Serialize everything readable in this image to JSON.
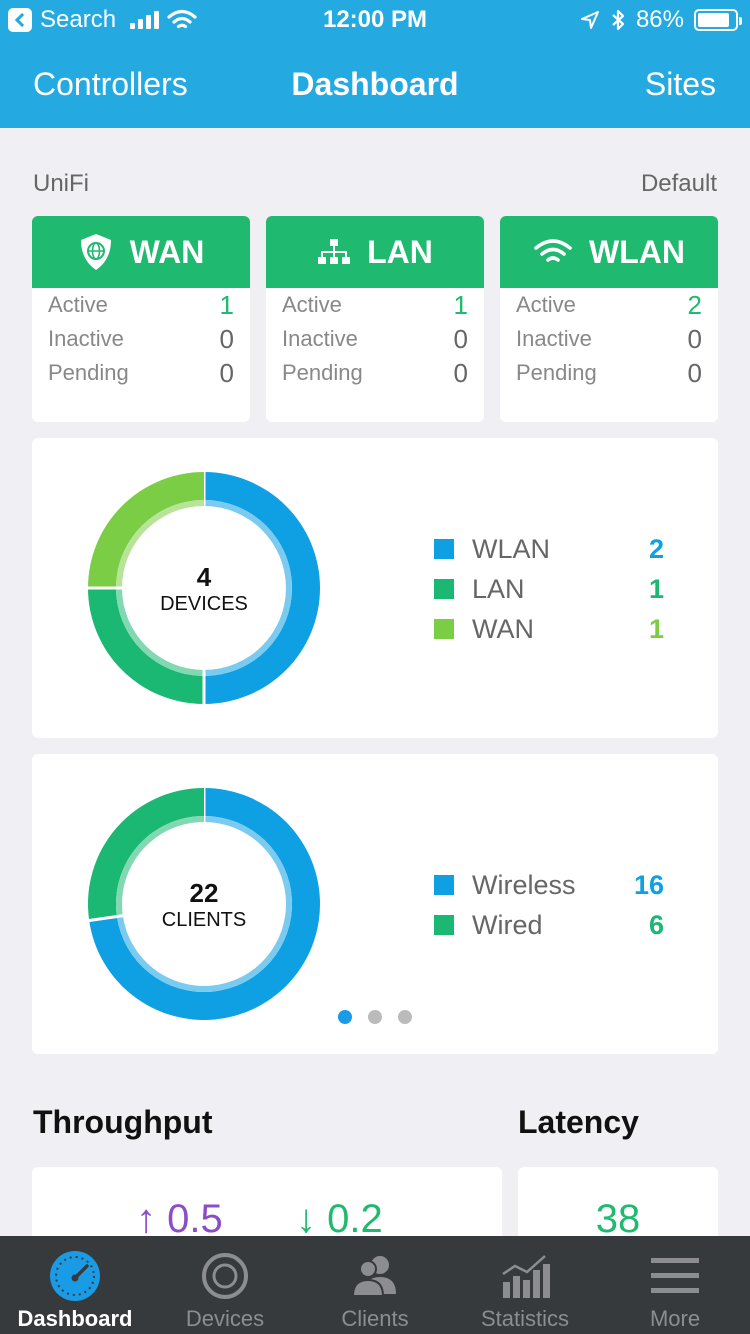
{
  "status_bar": {
    "back_label": "Search",
    "time": "12:00 PM",
    "battery": "86%"
  },
  "nav": {
    "left": "Controllers",
    "title": "Dashboard",
    "right": "Sites"
  },
  "site": {
    "left": "UniFi",
    "right": "Default"
  },
  "summary": [
    {
      "title": "WAN",
      "icon": "shield-globe-icon",
      "active_label": "Active",
      "active": "1",
      "inactive_label": "Inactive",
      "inactive": "0",
      "pending_label": "Pending",
      "pending": "0"
    },
    {
      "title": "LAN",
      "icon": "network-tree-icon",
      "active_label": "Active",
      "active": "1",
      "inactive_label": "Inactive",
      "inactive": "0",
      "pending_label": "Pending",
      "pending": "0"
    },
    {
      "title": "WLAN",
      "icon": "wifi-icon",
      "active_label": "Active",
      "active": "2",
      "inactive_label": "Inactive",
      "inactive": "0",
      "pending_label": "Pending",
      "pending": "0"
    }
  ],
  "devices": {
    "count": "4",
    "label": "DEVICES",
    "legend": [
      {
        "name": "WLAN",
        "value": "2",
        "color": "#0fa0e3"
      },
      {
        "name": "LAN",
        "value": "1",
        "color": "#1ab872"
      },
      {
        "name": "WAN",
        "value": "1",
        "color": "#7ccd46"
      }
    ]
  },
  "clients": {
    "count": "22",
    "label": "CLIENTS",
    "legend": [
      {
        "name": "Wireless",
        "value": "16",
        "color": "#0fa0e3"
      },
      {
        "name": "Wired",
        "value": "6",
        "color": "#1ab872"
      }
    ]
  },
  "throughput": {
    "title": "Throughput",
    "up": "↑ 0.5",
    "down": "↓ 0.2"
  },
  "latency": {
    "title": "Latency",
    "value": "38"
  },
  "tabs": [
    {
      "label": "Dashboard",
      "icon": "speedometer-icon",
      "active": true
    },
    {
      "label": "Devices",
      "icon": "device-ring-icon",
      "active": false
    },
    {
      "label": "Clients",
      "icon": "people-icon",
      "active": false
    },
    {
      "label": "Statistics",
      "icon": "bar-chart-icon",
      "active": false
    },
    {
      "label": "More",
      "icon": "menu-icon",
      "active": false
    }
  ],
  "colors": {
    "header": "#24aae1",
    "green": "#1fb96f",
    "blue": "#0fa0e3",
    "lime": "#7ccd46",
    "purple": "#8b4ec8",
    "tabbar": "#373a3d"
  }
}
